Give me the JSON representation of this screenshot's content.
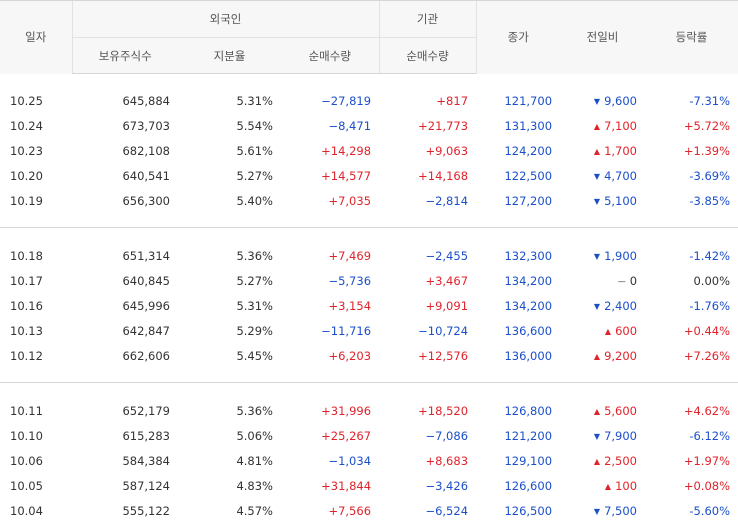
{
  "headers": {
    "date": "일자",
    "foreign": "외국인",
    "institution": "기관",
    "holding": "보유주식수",
    "ratio": "지분율",
    "net_foreign": "순매수량",
    "net_inst": "순매수량",
    "close": "종가",
    "change": "전일비",
    "rate": "등락률"
  },
  "groups": [
    [
      {
        "date": "10.25",
        "holding": "645,884",
        "ratio": "5.31%",
        "fnet": "−27,819",
        "inet": "+817",
        "close": "121,700",
        "dir": "down",
        "chg": "9,600",
        "rate": "-7.31%"
      },
      {
        "date": "10.24",
        "holding": "673,703",
        "ratio": "5.54%",
        "fnet": "−8,471",
        "inet": "+21,773",
        "close": "131,300",
        "dir": "up",
        "chg": "7,100",
        "rate": "+5.72%"
      },
      {
        "date": "10.23",
        "holding": "682,108",
        "ratio": "5.61%",
        "fnet": "+14,298",
        "inet": "+9,063",
        "close": "124,200",
        "dir": "up",
        "chg": "1,700",
        "rate": "+1.39%"
      },
      {
        "date": "10.20",
        "holding": "640,541",
        "ratio": "5.27%",
        "fnet": "+14,577",
        "inet": "+14,168",
        "close": "122,500",
        "dir": "down",
        "chg": "4,700",
        "rate": "-3.69%"
      },
      {
        "date": "10.19",
        "holding": "656,300",
        "ratio": "5.40%",
        "fnet": "+7,035",
        "inet": "−2,814",
        "close": "127,200",
        "dir": "down",
        "chg": "5,100",
        "rate": "-3.85%"
      }
    ],
    [
      {
        "date": "10.18",
        "holding": "651,314",
        "ratio": "5.36%",
        "fnet": "+7,469",
        "inet": "−2,455",
        "close": "132,300",
        "dir": "down",
        "chg": "1,900",
        "rate": "-1.42%"
      },
      {
        "date": "10.17",
        "holding": "640,845",
        "ratio": "5.27%",
        "fnet": "−5,736",
        "inet": "+3,467",
        "close": "134,200",
        "dir": "flat",
        "chg": "0",
        "rate": "0.00%"
      },
      {
        "date": "10.16",
        "holding": "645,996",
        "ratio": "5.31%",
        "fnet": "+3,154",
        "inet": "+9,091",
        "close": "134,200",
        "dir": "down",
        "chg": "2,400",
        "rate": "-1.76%"
      },
      {
        "date": "10.13",
        "holding": "642,847",
        "ratio": "5.29%",
        "fnet": "−11,716",
        "inet": "−10,724",
        "close": "136,600",
        "dir": "up",
        "chg": "600",
        "rate": "+0.44%"
      },
      {
        "date": "10.12",
        "holding": "662,606",
        "ratio": "5.45%",
        "fnet": "+6,203",
        "inet": "+12,576",
        "close": "136,000",
        "dir": "up",
        "chg": "9,200",
        "rate": "+7.26%"
      }
    ],
    [
      {
        "date": "10.11",
        "holding": "652,179",
        "ratio": "5.36%",
        "fnet": "+31,996",
        "inet": "+18,520",
        "close": "126,800",
        "dir": "up",
        "chg": "5,600",
        "rate": "+4.62%"
      },
      {
        "date": "10.10",
        "holding": "615,283",
        "ratio": "5.06%",
        "fnet": "+25,267",
        "inet": "−7,086",
        "close": "121,200",
        "dir": "down",
        "chg": "7,900",
        "rate": "-6.12%"
      },
      {
        "date": "10.06",
        "holding": "584,384",
        "ratio": "4.81%",
        "fnet": "−1,034",
        "inet": "+8,683",
        "close": "129,100",
        "dir": "up",
        "chg": "2,500",
        "rate": "+1.97%"
      },
      {
        "date": "10.05",
        "holding": "587,124",
        "ratio": "4.83%",
        "fnet": "+31,844",
        "inet": "−3,426",
        "close": "126,600",
        "dir": "up",
        "chg": "100",
        "rate": "+0.08%"
      },
      {
        "date": "10.04",
        "holding": "555,122",
        "ratio": "4.57%",
        "fnet": "+7,566",
        "inet": "−6,524",
        "close": "126,500",
        "dir": "down",
        "chg": "7,500",
        "rate": "-5.60%"
      }
    ]
  ],
  "colors": {
    "up": "#e0232b",
    "down": "#1b4fc9"
  }
}
